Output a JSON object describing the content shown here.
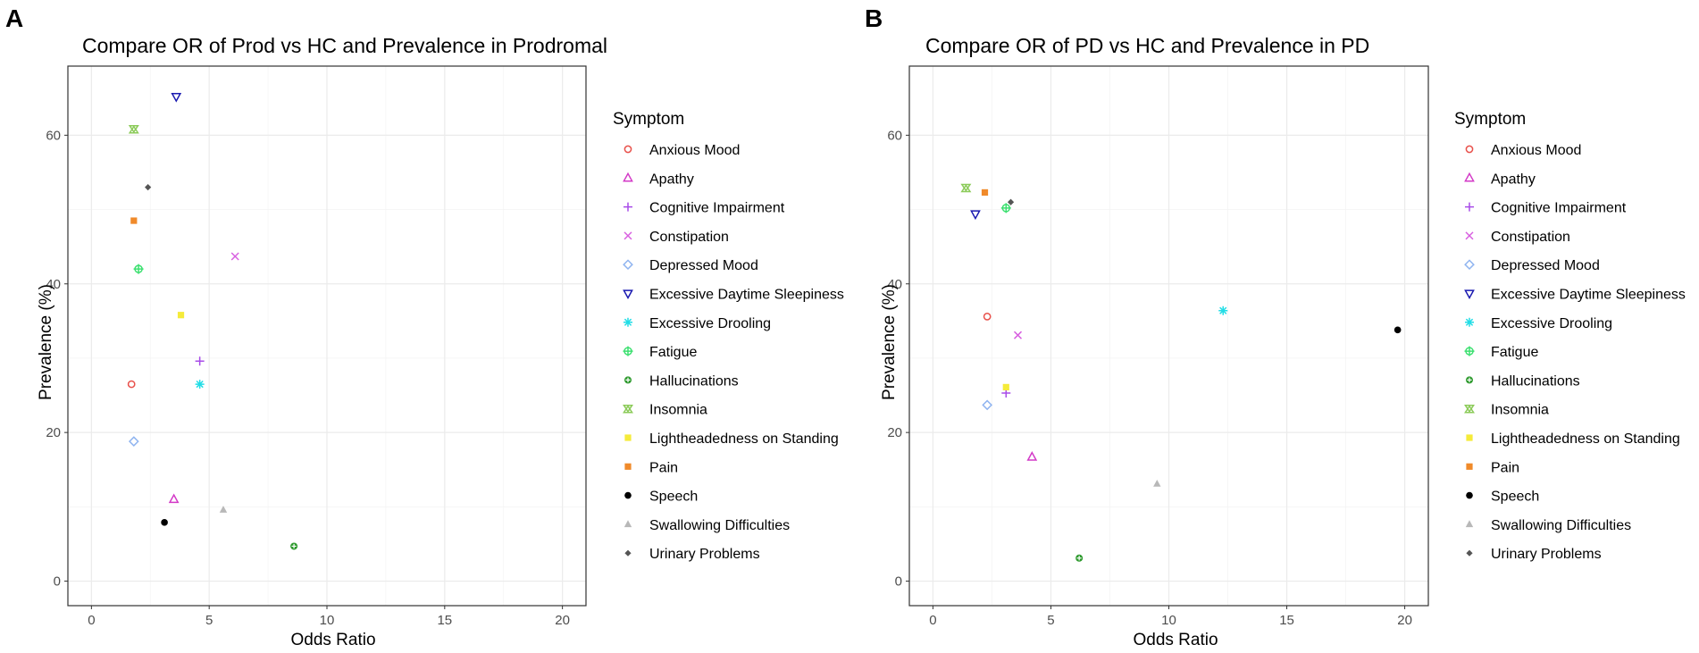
{
  "symbols": {
    "Anxious Mood": {
      "color": "#E8504A",
      "shape": "circle-open"
    },
    "Apathy": {
      "color": "#D33AC7",
      "shape": "triangle-open"
    },
    "Cognitive Impairment": {
      "color": "#A84CE8",
      "shape": "plus"
    },
    "Constipation": {
      "color": "#D860E0",
      "shape": "cross"
    },
    "Depressed Mood": {
      "color": "#8FB4F0",
      "shape": "diamond-open"
    },
    "Excessive Daytime Sleepiness": {
      "color": "#1A1AB0",
      "shape": "triangle-down-open"
    },
    "Excessive Drooling": {
      "color": "#22DDE6",
      "shape": "asterisk"
    },
    "Fatigue": {
      "color": "#3CE070",
      "shape": "circle-plus"
    },
    "Hallucinations": {
      "color": "#2E9A2E",
      "shape": "circle-plus-filled"
    },
    "Insomnia": {
      "color": "#8CCB5A",
      "shape": "hourglass"
    },
    "Lightheadedness on Standing": {
      "color": "#F5EB3A",
      "shape": "square-filled"
    },
    "Pain": {
      "color": "#F08A2A",
      "shape": "square-filled"
    },
    "Speech": {
      "color": "#000000",
      "shape": "circle-filled"
    },
    "Swallowing Difficulties": {
      "color": "#B8B8B8",
      "shape": "triangle-filled"
    },
    "Urinary Problems": {
      "color": "#555555",
      "shape": "diamond-filled"
    }
  },
  "chart_data": [
    {
      "type": "scatter",
      "panel_label": "A",
      "title": "Compare OR of Prod vs HC and Prevalence in Prodromal",
      "xlabel": "Odds Ratio",
      "ylabel": "Prevalence (%)",
      "xlim": [
        -1,
        21
      ],
      "ylim": [
        -3.3,
        69.3
      ],
      "xticks": [
        0,
        5,
        10,
        15,
        20
      ],
      "yticks": [
        0,
        20,
        40,
        60
      ],
      "grid": true,
      "legend_title": "Symptom",
      "legend_position": "right",
      "points": [
        {
          "symptom": "Anxious Mood",
          "x": 1.7,
          "y": 26.5
        },
        {
          "symptom": "Apathy",
          "x": 3.5,
          "y": 11.0
        },
        {
          "symptom": "Cognitive Impairment",
          "x": 4.6,
          "y": 29.6
        },
        {
          "symptom": "Constipation",
          "x": 6.1,
          "y": 43.7
        },
        {
          "symptom": "Depressed Mood",
          "x": 1.8,
          "y": 18.8
        },
        {
          "symptom": "Excessive Daytime Sleepiness",
          "x": 3.6,
          "y": 65.2
        },
        {
          "symptom": "Excessive Drooling",
          "x": 4.6,
          "y": 26.5
        },
        {
          "symptom": "Fatigue",
          "x": 2.0,
          "y": 42.0
        },
        {
          "symptom": "Hallucinations",
          "x": 8.6,
          "y": 4.7
        },
        {
          "symptom": "Insomnia",
          "x": 1.8,
          "y": 60.8
        },
        {
          "symptom": "Lightheadedness on Standing",
          "x": 3.8,
          "y": 35.8
        },
        {
          "symptom": "Pain",
          "x": 1.8,
          "y": 48.5
        },
        {
          "symptom": "Speech",
          "x": 3.1,
          "y": 7.9
        },
        {
          "symptom": "Swallowing Difficulties",
          "x": 5.6,
          "y": 9.6
        },
        {
          "symptom": "Urinary Problems",
          "x": 2.4,
          "y": 53.0
        }
      ]
    },
    {
      "type": "scatter",
      "panel_label": "B",
      "title": "Compare OR of PD vs HC and Prevalence in PD",
      "xlabel": "Odds Ratio",
      "ylabel": "Prevalence (%)",
      "xlim": [
        -1,
        21
      ],
      "ylim": [
        -3.3,
        69.3
      ],
      "xticks": [
        0,
        5,
        10,
        15,
        20
      ],
      "yticks": [
        0,
        20,
        40,
        60
      ],
      "grid": true,
      "legend_title": "Symptom",
      "legend_position": "right",
      "points": [
        {
          "symptom": "Anxious Mood",
          "x": 2.3,
          "y": 35.6
        },
        {
          "symptom": "Apathy",
          "x": 4.2,
          "y": 16.7
        },
        {
          "symptom": "Cognitive Impairment",
          "x": 3.1,
          "y": 25.3
        },
        {
          "symptom": "Constipation",
          "x": 3.6,
          "y": 33.1
        },
        {
          "symptom": "Depressed Mood",
          "x": 2.3,
          "y": 23.7
        },
        {
          "symptom": "Excessive Daytime Sleepiness",
          "x": 1.8,
          "y": 49.4
        },
        {
          "symptom": "Excessive Drooling",
          "x": 12.3,
          "y": 36.4
        },
        {
          "symptom": "Fatigue",
          "x": 3.1,
          "y": 50.2
        },
        {
          "symptom": "Hallucinations",
          "x": 6.2,
          "y": 3.1
        },
        {
          "symptom": "Insomnia",
          "x": 1.4,
          "y": 52.9
        },
        {
          "symptom": "Lightheadedness on Standing",
          "x": 3.1,
          "y": 26.1
        },
        {
          "symptom": "Pain",
          "x": 2.2,
          "y": 52.3
        },
        {
          "symptom": "Speech",
          "x": 19.7,
          "y": 33.8
        },
        {
          "symptom": "Swallowing Difficulties",
          "x": 9.5,
          "y": 13.1
        },
        {
          "symptom": "Urinary Problems",
          "x": 3.3,
          "y": 51.0
        }
      ]
    }
  ]
}
